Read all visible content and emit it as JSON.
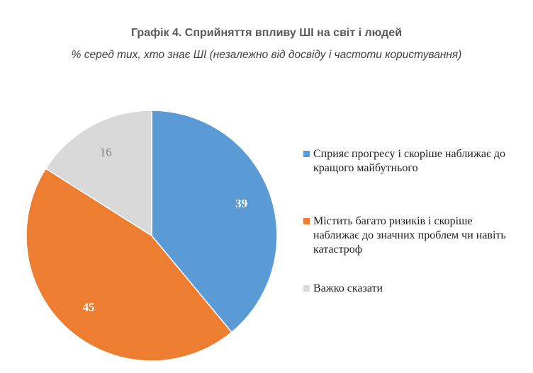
{
  "title": "Графік 4. Сприйняття впливу ШІ на світ і людей",
  "subtitle": "% серед тих, хто знає ШІ (незалежно від досвіду і частоти користування)",
  "chart_data": {
    "type": "pie",
    "title": "Графік 4. Сприйняття впливу ШІ на світ і людей",
    "subtitle": "% серед тих, хто знає ШІ (незалежно від досвіду і частоти користування)",
    "labels": [
      "Сприяє прогресу і скоріше наближає до кращого майбутнього",
      "Містить багато ризиків і скоріше наближає до значних проблем чи навіть катастроф",
      "Важко сказати"
    ],
    "values": [
      39,
      45,
      16
    ],
    "colors": [
      "#5B9BD5",
      "#ED7D31",
      "#D9D9D9"
    ],
    "start_angle_deg": 0,
    "direction": "clockwise",
    "legend_position": "right"
  }
}
